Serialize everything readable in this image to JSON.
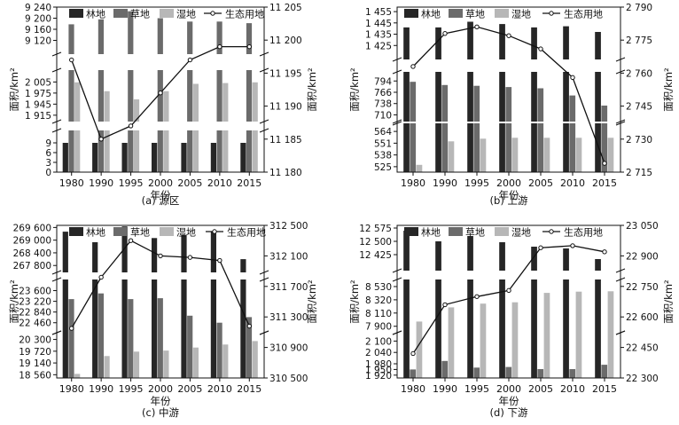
{
  "legend": {
    "forest": "林地",
    "grass": "草地",
    "wetland": "湿地",
    "eco": "生态用地"
  },
  "colors": {
    "forest": "#262626",
    "grass": "#6b6b6b",
    "wetland": "#b7b7b7",
    "eco_line": "#111111",
    "marker_fill": "#ffffff"
  },
  "xlabel": "年份",
  "ylabel_left": "面积/km²",
  "ylabel_right": "面积/km²",
  "chart_data": [
    {
      "type": "bar",
      "caption": "(a) 源区",
      "categories": [
        "1980",
        "1990",
        "1995",
        "2000",
        "2005",
        "2010",
        "2015"
      ],
      "left_bands": [
        {
          "range": [
            9080,
            9240
          ],
          "ticks": [
            "9 240",
            "9 200",
            "9 160",
            "9 120"
          ],
          "tick_values": [
            9240,
            9200,
            9160,
            9120
          ]
        },
        {
          "range": [
            1905,
            2030
          ],
          "ticks": [
            "2 005",
            "1 975",
            "1 945",
            "1 915"
          ],
          "tick_values": [
            2005,
            1975,
            1945,
            1915
          ]
        },
        {
          "range": [
            0,
            12
          ],
          "ticks": [
            "9",
            "6",
            "3",
            "0"
          ],
          "tick_values": [
            9,
            6,
            3,
            0
          ]
        }
      ],
      "right_axis": {
        "range": [
          11180,
          11205
        ],
        "ticks": [
          "11 205",
          "11 200",
          "11 195",
          "11 190",
          "11 185",
          "11 180"
        ],
        "tick_values": [
          11205,
          11200,
          11195,
          11190,
          11185,
          11180
        ]
      },
      "series": [
        {
          "name": "林地",
          "values": [
            9,
            9,
            9,
            9,
            9,
            9,
            9
          ]
        },
        {
          "name": "草地",
          "values": [
            9178,
            9196,
            9225,
            9200,
            9188,
            9188,
            9182
          ]
        },
        {
          "name": "湿地",
          "values": [
            2004,
            1980,
            1958,
            1980,
            2000,
            2002,
            2004
          ]
        }
      ],
      "line": {
        "name": "生态用地",
        "values": [
          11197,
          11185,
          11187,
          11192,
          11197,
          11199,
          11199
        ]
      }
    },
    {
      "type": "bar",
      "caption": "(b) 上游",
      "categories": [
        "1980",
        "1990",
        "1995",
        "2000",
        "2005",
        "2010",
        "2015"
      ],
      "left_bands": [
        {
          "range": [
            1415,
            1459
          ],
          "ticks": [
            "1 455",
            "1 445",
            "1 435",
            "1 425"
          ],
          "tick_values": [
            1455,
            1445,
            1435,
            1425
          ]
        },
        {
          "range": [
            700,
            810
          ],
          "ticks": [
            "794",
            "766",
            "738",
            "710"
          ],
          "tick_values": [
            794,
            766,
            738,
            710
          ]
        },
        {
          "range": [
            519,
            570
          ],
          "ticks": [
            "564",
            "551",
            "538",
            "525"
          ],
          "tick_values": [
            564,
            551,
            538,
            525
          ]
        }
      ],
      "right_axis": {
        "range": [
          2715,
          2790
        ],
        "ticks": [
          "2 790",
          "2 775",
          "2 760",
          "2 745",
          "2 730",
          "2 715"
        ],
        "tick_values": [
          2790,
          2775,
          2760,
          2745,
          2730,
          2715
        ]
      },
      "series": [
        {
          "name": "林地",
          "values": [
            1441,
            1441,
            1446,
            1444,
            1441,
            1442,
            1437
          ]
        },
        {
          "name": "草地",
          "values": [
            792,
            784,
            782,
            779,
            776,
            758,
            733
          ]
        },
        {
          "name": "湿地",
          "values": [
            527,
            553,
            556,
            557,
            557,
            557,
            557
          ]
        }
      ],
      "line": {
        "name": "生态用地",
        "values": [
          2763,
          2778,
          2781,
          2777,
          2771,
          2758,
          2719
        ]
      }
    },
    {
      "type": "bar",
      "caption": "(c) 中游",
      "categories": [
        "1980",
        "1990",
        "1995",
        "2000",
        "2005",
        "2010",
        "2015"
      ],
      "left_bands": [
        {
          "range": [
            267600,
            269700
          ],
          "ticks": [
            "269 600",
            "269 000",
            "268 400",
            "267 800"
          ],
          "tick_values": [
            269600,
            269000,
            268400,
            267800
          ]
        },
        {
          "range": [
            22200,
            23900
          ],
          "ticks": [
            "23 600",
            "23 220",
            "22 840",
            "22 460"
          ],
          "tick_values": [
            23600,
            23220,
            22840,
            22460
          ]
        },
        {
          "range": [
            18400,
            20500
          ],
          "ticks": [
            "20 300",
            "19 720",
            "19 140",
            "18 560"
          ],
          "tick_values": [
            20300,
            19720,
            19140,
            18560
          ]
        }
      ],
      "right_axis": {
        "range": [
          310500,
          312500
        ],
        "ticks": [
          "312 500",
          "312 100",
          "311 700",
          "311 300",
          "310 900",
          "310 500"
        ],
        "tick_values": [
          312500,
          312100,
          311700,
          311300,
          310900,
          310500
        ]
      },
      "series": [
        {
          "name": "林地",
          "values": [
            269400,
            268900,
            269650,
            269100,
            269250,
            269400,
            268100
          ]
        },
        {
          "name": "草地",
          "values": [
            23300,
            23500,
            23300,
            23330,
            22710,
            22460,
            22660
          ]
        },
        {
          "name": "湿地",
          "values": [
            18600,
            19480,
            19700,
            19750,
            19900,
            20050,
            20220
          ]
        }
      ],
      "line": {
        "name": "生态用地",
        "values": [
          311150,
          311820,
          312300,
          312100,
          312080,
          312040,
          311180
        ]
      }
    },
    {
      "type": "bar",
      "caption": "(d) 下游",
      "categories": [
        "1980",
        "1990",
        "1995",
        "2000",
        "2005",
        "2010",
        "2015"
      ],
      "left_bands": [
        {
          "range": [
            12350,
            12590
          ],
          "ticks": [
            "12 575",
            "12 500",
            "12 425"
          ],
          "tick_values": [
            12575,
            12500,
            12425
          ]
        },
        {
          "range": [
            7840,
            8600
          ],
          "ticks": [
            "8 530",
            "8 320",
            "8 110",
            "7 900"
          ],
          "tick_values": [
            8530,
            8320,
            8110,
            7900
          ]
        },
        {
          "range": [
            1905,
            2130
          ],
          "ticks": [
            "2 100",
            "2 040",
            "1 980",
            "1 950",
            "1 920"
          ],
          "tick_values": [
            2100,
            2040,
            1980,
            1950,
            1920
          ]
        }
      ],
      "right_axis": {
        "range": [
          22300,
          23050
        ],
        "ticks": [
          "23 050",
          "22 900",
          "22 750",
          "22 600",
          "22 450",
          "22 300"
        ],
        "tick_values": [
          23050,
          22900,
          22750,
          22600,
          22450,
          22300
        ]
      },
      "series": [
        {
          "name": "林地",
          "values": [
            12560,
            12500,
            12530,
            12495,
            12470,
            12460,
            12400
          ]
        },
        {
          "name": "草地",
          "values": [
            1950,
            1995,
            1960,
            1963,
            1952,
            1952,
            1975
          ]
        },
        {
          "name": "湿地",
          "values": [
            7975,
            8200,
            8260,
            8280,
            8430,
            8450,
            8455
          ]
        }
      ],
      "line": {
        "name": "生态用地",
        "values": [
          22420,
          22660,
          22700,
          22730,
          22940,
          22950,
          22920
        ]
      }
    }
  ]
}
